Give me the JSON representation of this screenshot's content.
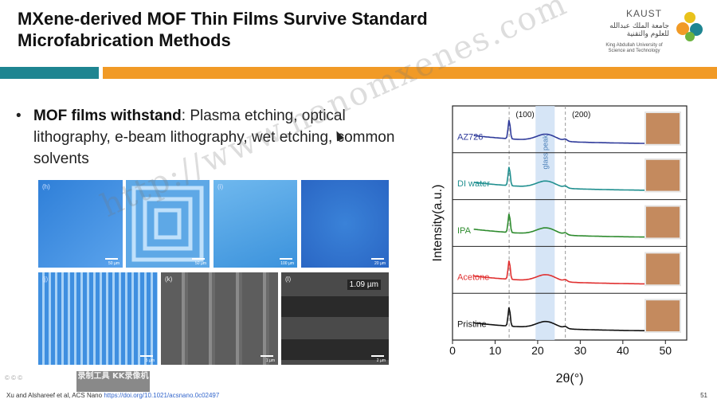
{
  "slide": {
    "title": "MXene-derived MOF Thin Films Survive Standard Microfabrication Methods",
    "page_number": "51",
    "bullet": {
      "bold": "MOF films withstand",
      "rest": ": Plasma etching, optical lithography, e-beam lithography, wet etching, common solvents"
    },
    "citation": {
      "authors": "Xu and Alshareef et al, ACS Nano",
      "link": "https://doi.org/10.1021/acsnano.0c02497"
    },
    "watermark": "http://www.nanomxenes.com",
    "overlay_stamp": "录制工具 KK录像机",
    "corner_mark": "© © ©"
  },
  "logo": {
    "name": "KAUST",
    "arabic": "جامعة الملك عبدالله للعلوم والتقنية",
    "english_line1": "King Abdullah University of",
    "english_line2": "Science and Technology",
    "colors": [
      "#f19a26",
      "#1e8591",
      "#6cb33f",
      "#e9c21b"
    ]
  },
  "micrographs": {
    "panels": [
      {
        "label": "(h)",
        "scale": "50 µm"
      },
      {
        "label": "",
        "scale": "50 µm"
      },
      {
        "label": "(i)",
        "scale": "100 µm"
      },
      {
        "label": "",
        "scale": "20 µm"
      },
      {
        "label": "(j)",
        "scale": "5 µm"
      },
      {
        "label": "(k)",
        "scale": "1 µm"
      },
      {
        "label": "(l)",
        "scale": "2 µm",
        "measurement": "1.09 µm"
      }
    ]
  },
  "chart_data": {
    "type": "line",
    "xlabel": "2θ(°)",
    "ylabel": "Intensity(a.u.)",
    "xlim": [
      0,
      55
    ],
    "xticks": [
      0,
      10,
      20,
      30,
      40,
      50
    ],
    "peak_labels": [
      {
        "text": "(100)",
        "x": 13.3
      },
      {
        "text": "(200)",
        "x": 26.5
      }
    ],
    "glass_peak": {
      "label": "glass peak",
      "range": [
        19.5,
        24
      ]
    },
    "dashed_lines_x": [
      13.3,
      26.5
    ],
    "series": [
      {
        "name": "AZ726",
        "color": "#2e3a9a"
      },
      {
        "name": "DI water",
        "color": "#1f8f8f"
      },
      {
        "name": "IPA",
        "color": "#2e8b2e"
      },
      {
        "name": "Acetone",
        "color": "#e03030"
      },
      {
        "name": "Pristine",
        "color": "#111111"
      }
    ]
  }
}
